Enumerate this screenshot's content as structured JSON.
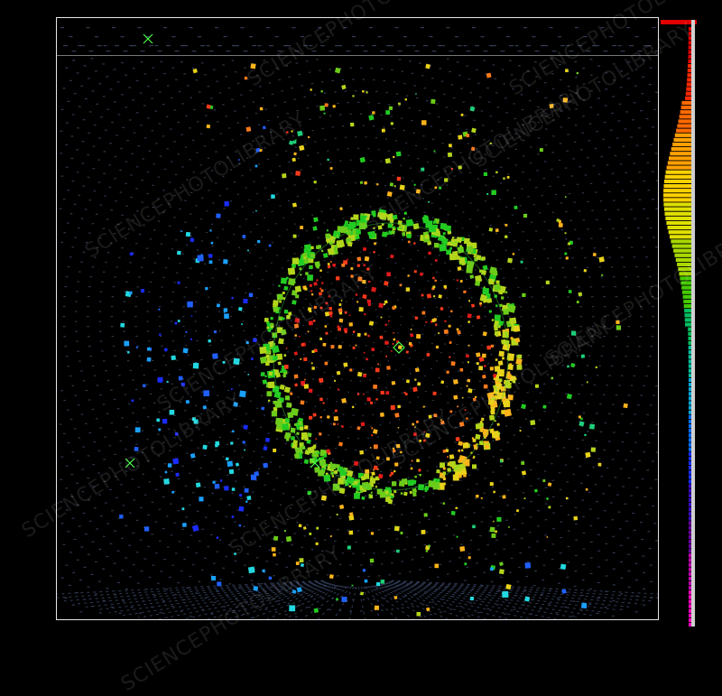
{
  "watermark": {
    "text": "SCIENCEPHOTOLIBRARY"
  },
  "palette": [
    "#1a2cff",
    "#2060ff",
    "#1aa0ff",
    "#22d8e0",
    "#1ecf7a",
    "#22cc22",
    "#6ccc1a",
    "#b4d61a",
    "#e8d21a",
    "#ffb41a",
    "#ff7a1a",
    "#ff3a1a",
    "#e01a1a"
  ],
  "scale_colors": [
    "#e00000",
    "#ff2a00",
    "#ff6a00",
    "#ffa000",
    "#ffd200",
    "#e0e000",
    "#a8d800",
    "#44cc00",
    "#00c060",
    "#00c0a0",
    "#00a8d8",
    "#0070ff",
    "#1a30ff",
    "#3a10c0",
    "#6a00a0",
    "#c000b0",
    "#ff00c0"
  ]
}
